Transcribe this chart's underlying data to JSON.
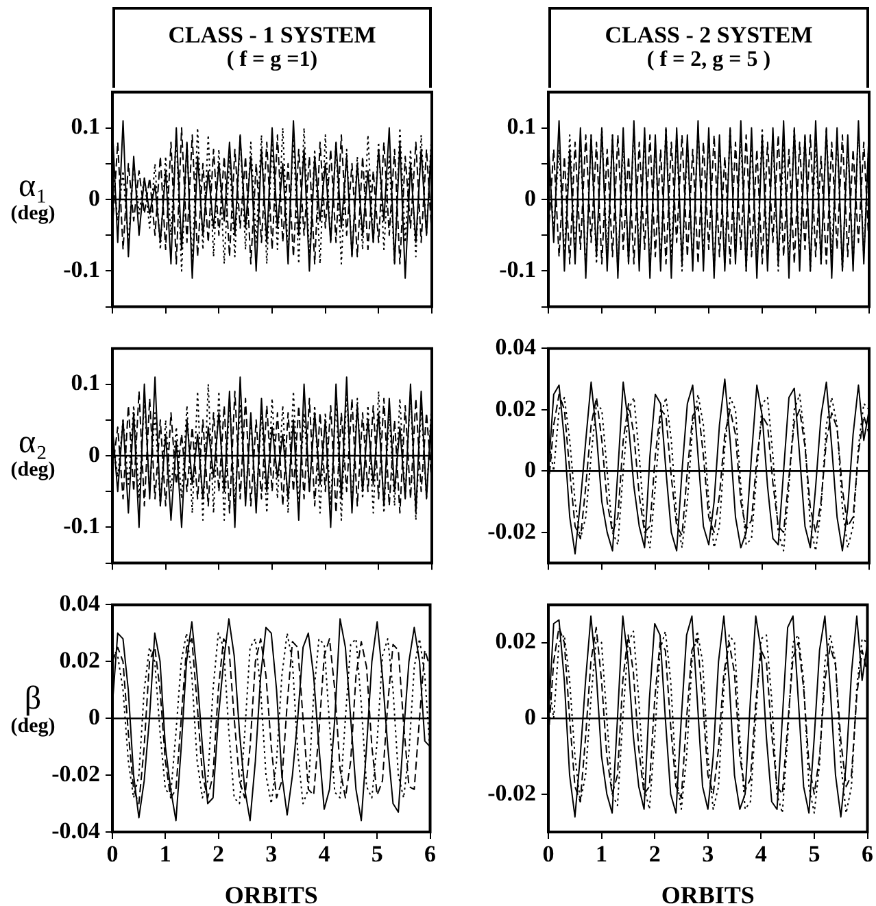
{
  "chart_data": [
    {
      "type": "line",
      "title": "CLASS - 1 SYSTEM",
      "subtitle": "( f = g =1)",
      "ylabel": "α₁\n(deg)",
      "tick_labels": "y",
      "xlim": [
        0,
        6
      ],
      "xticks": [
        0,
        1,
        2,
        3,
        4,
        5,
        6
      ],
      "ylim": [
        -0.15,
        0.15
      ],
      "yticks": [
        {
          "value": -0.15,
          "label": null
        },
        -0.1,
        {
          "value": -0.05,
          "label": null
        },
        0,
        {
          "value": 0.05,
          "label": null
        },
        0.1
      ],
      "ref_lines": [
        {
          "axis": "y",
          "value": 0
        }
      ],
      "x": [
        0,
        0.1,
        0.2,
        0.3,
        0.4,
        0.5,
        0.6,
        0.7,
        0.8,
        0.9,
        1,
        1.1,
        1.2,
        1.3,
        1.4,
        1.5,
        1.6,
        1.7,
        1.8,
        1.9,
        2,
        2.1,
        2.2,
        2.3,
        2.4,
        2.5,
        2.6,
        2.7,
        2.8,
        2.9,
        3,
        3.1,
        3.2,
        3.3,
        3.4,
        3.5,
        3.6,
        3.7,
        3.8,
        3.9,
        4,
        4.1,
        4.2,
        4.3,
        4.4,
        4.5,
        4.6,
        4.7,
        4.8,
        4.9,
        5,
        5.1,
        5.2,
        5.3,
        5.4,
        5.5,
        5.6,
        5.7,
        5.8,
        5.9,
        6
      ],
      "series": [
        {
          "color": "#000000",
          "line_style": "solid",
          "values": [
            0.1,
            -0.06,
            0.11,
            -0.08,
            0.06,
            -0.05,
            0.03,
            -0.02,
            0.02,
            -0.06,
            0.04,
            -0.09,
            0.1,
            -0.07,
            0.08,
            -0.11,
            0.06,
            -0.05,
            0.04,
            -0.04,
            0.05,
            -0.03,
            0.08,
            -0.05,
            0.09,
            -0.04,
            0.06,
            -0.1,
            0.07,
            -0.06,
            0.1,
            -0.04,
            0.05,
            -0.09,
            0.11,
            -0.05,
            0.07,
            -0.1,
            0.06,
            -0.03,
            0.05,
            -0.06,
            0.08,
            -0.04,
            0.06,
            -0.08,
            0.05,
            -0.05,
            0.04,
            -0.06,
            0.07,
            -0.03,
            0.1,
            -0.09,
            0.08,
            -0.11,
            0.05,
            -0.06,
            0.07,
            -0.05,
            0.09
          ]
        },
        {
          "color": "#000000",
          "line_style": "dashed",
          "values": [
            -0.04,
            0.08,
            -0.07,
            0.05,
            -0.03,
            0.04,
            -0.02,
            0.03,
            -0.05,
            0.06,
            -0.07,
            0.08,
            -0.09,
            0.1,
            -0.06,
            0.09,
            -0.08,
            0.05,
            -0.06,
            0.07,
            -0.05,
            0.06,
            -0.08,
            0.07,
            -0.04,
            0.06,
            -0.09,
            0.05,
            -0.06,
            0.08,
            -0.07,
            0.09,
            -0.06,
            0.05,
            -0.08,
            0.07,
            -0.05,
            0.06,
            -0.09,
            0.08,
            -0.04,
            0.07,
            -0.06,
            0.09,
            -0.05,
            0.05,
            -0.08,
            0.06,
            -0.07,
            0.04,
            -0.06,
            0.08,
            -0.05,
            0.07,
            -0.09,
            0.06,
            -0.04,
            0.08,
            -0.06,
            0.07,
            -0.05
          ]
        },
        {
          "color": "#000000",
          "line_style": "dotted",
          "values": [
            0.05,
            -0.03,
            0.04,
            -0.06,
            0.05,
            -0.02,
            0.03,
            -0.04,
            0.05,
            -0.07,
            0.06,
            -0.05,
            0.09,
            -0.1,
            0.08,
            -0.09,
            0.1,
            -0.07,
            0.09,
            -0.08,
            0.07,
            -0.09,
            0.06,
            -0.08,
            0.09,
            -0.07,
            0.08,
            -0.06,
            0.09,
            -0.09,
            0.08,
            -0.07,
            0.1,
            -0.08,
            0.09,
            -0.09,
            0.1,
            -0.08,
            0.07,
            -0.09,
            0.09,
            -0.06,
            0.08,
            -0.09,
            0.07,
            -0.08,
            0.06,
            -0.07,
            0.09,
            -0.06,
            0.08,
            -0.07,
            0.06,
            -0.09,
            0.1,
            -0.06,
            0.07,
            -0.08,
            0.09,
            -0.05,
            0.1
          ]
        }
      ]
    },
    {
      "type": "line",
      "title": "CLASS - 2 SYSTEM",
      "subtitle": "( f = 2, g = 5 )",
      "tick_labels": "y",
      "xlim": [
        0,
        6
      ],
      "xticks": [
        0,
        1,
        2,
        3,
        4,
        5,
        6
      ],
      "ylim": [
        -0.15,
        0.15
      ],
      "yticks": [
        {
          "value": -0.15,
          "label": null
        },
        -0.1,
        {
          "value": -0.05,
          "label": null
        },
        0,
        {
          "value": 0.05,
          "label": null
        },
        0.1
      ],
      "ref_lines": [
        {
          "axis": "y",
          "value": 0
        }
      ],
      "x": [
        0,
        0.1,
        0.2,
        0.3,
        0.4,
        0.5,
        0.6,
        0.7,
        0.8,
        0.9,
        1,
        1.1,
        1.2,
        1.3,
        1.4,
        1.5,
        1.6,
        1.7,
        1.8,
        1.9,
        2,
        2.1,
        2.2,
        2.3,
        2.4,
        2.5,
        2.6,
        2.7,
        2.8,
        2.9,
        3,
        3.1,
        3.2,
        3.3,
        3.4,
        3.5,
        3.6,
        3.7,
        3.8,
        3.9,
        4,
        4.1,
        4.2,
        4.3,
        4.4,
        4.5,
        4.6,
        4.7,
        4.8,
        4.9,
        5,
        5.1,
        5.2,
        5.3,
        5.4,
        5.5,
        5.6,
        5.7,
        5.8,
        5.9,
        6
      ],
      "series": [
        {
          "color": "#000000",
          "line_style": "solid",
          "values": [
            0.08,
            -0.06,
            0.11,
            -0.1,
            0.07,
            -0.09,
            0.1,
            -0.11,
            0.09,
            -0.08,
            0.1,
            -0.1,
            0.09,
            -0.11,
            0.1,
            -0.09,
            0.11,
            -0.1,
            0.1,
            -0.11,
            0.09,
            -0.1,
            0.1,
            -0.11,
            0.1,
            -0.09,
            0.09,
            -0.1,
            0.11,
            -0.1,
            0.1,
            -0.11,
            0.09,
            -0.1,
            0.1,
            -0.09,
            0.11,
            -0.1,
            0.1,
            -0.11,
            0.09,
            -0.1,
            0.1,
            -0.09,
            0.11,
            -0.11,
            0.1,
            -0.1,
            0.09,
            -0.1,
            0.11,
            -0.09,
            0.1,
            -0.11,
            0.1,
            -0.1,
            0.09,
            -0.1,
            0.11,
            -0.09,
            0.1
          ]
        },
        {
          "color": "#000000",
          "line_style": "dashed",
          "values": [
            -0.05,
            0.07,
            -0.08,
            0.06,
            -0.09,
            0.08,
            -0.07,
            0.09,
            -0.06,
            0.08,
            -0.09,
            0.07,
            -0.08,
            0.09,
            -0.07,
            0.06,
            -0.09,
            0.08,
            -0.07,
            0.09,
            -0.08,
            0.07,
            -0.09,
            0.08,
            -0.06,
            0.09,
            -0.08,
            0.07,
            -0.09,
            0.08,
            -0.07,
            0.09,
            -0.08,
            0.06,
            -0.09,
            0.08,
            -0.07,
            0.09,
            -0.08,
            0.07,
            -0.09,
            0.08,
            -0.06,
            0.09,
            -0.08,
            0.07,
            -0.09,
            0.08,
            -0.07,
            0.09,
            -0.08,
            0.06,
            -0.09,
            0.08,
            -0.07,
            0.09,
            -0.08,
            0.07,
            -0.06,
            0.08,
            -0.07
          ]
        },
        {
          "color": "#000000",
          "line_style": "dotted",
          "values": [
            0.06,
            -0.04,
            0.07,
            -0.08,
            0.09,
            -0.07,
            0.08,
            -0.1,
            0.09,
            -0.09,
            0.1,
            -0.08,
            0.09,
            -0.1,
            0.08,
            -0.09,
            0.1,
            -0.08,
            0.09,
            -0.1,
            0.08,
            -0.09,
            0.1,
            -0.08,
            0.09,
            -0.1,
            0.08,
            -0.09,
            0.1,
            -0.08,
            0.09,
            -0.1,
            0.08,
            -0.09,
            0.1,
            -0.08,
            0.09,
            -0.1,
            0.08,
            -0.09,
            0.1,
            -0.08,
            0.09,
            -0.1,
            0.08,
            -0.09,
            0.1,
            -0.08,
            0.09,
            -0.1,
            0.08,
            -0.09,
            0.1,
            -0.08,
            0.09,
            -0.1,
            0.08,
            -0.09,
            0.1,
            -0.08,
            0.09
          ]
        }
      ]
    },
    {
      "type": "line",
      "ylabel": "α₂\n(deg)",
      "tick_labels": "y",
      "xlim": [
        0,
        6
      ],
      "xticks": [
        0,
        1,
        2,
        3,
        4,
        5,
        6
      ],
      "ylim": [
        -0.15,
        0.15
      ],
      "yticks": [
        {
          "value": -0.15,
          "label": null
        },
        -0.1,
        {
          "value": -0.05,
          "label": null
        },
        0,
        {
          "value": 0.05,
          "label": null
        },
        0.1
      ],
      "ref_lines": [
        {
          "axis": "y",
          "value": 0
        }
      ],
      "x": [
        0,
        0.1,
        0.2,
        0.3,
        0.4,
        0.5,
        0.6,
        0.7,
        0.8,
        0.9,
        1,
        1.1,
        1.2,
        1.3,
        1.4,
        1.5,
        1.6,
        1.7,
        1.8,
        1.9,
        2,
        2.1,
        2.2,
        2.3,
        2.4,
        2.5,
        2.6,
        2.7,
        2.8,
        2.9,
        3,
        3.1,
        3.2,
        3.3,
        3.4,
        3.5,
        3.6,
        3.7,
        3.8,
        3.9,
        4,
        4.1,
        4.2,
        4.3,
        4.4,
        4.5,
        4.6,
        4.7,
        4.8,
        4.9,
        5,
        5.1,
        5.2,
        5.3,
        5.4,
        5.5,
        5.6,
        5.7,
        5.8,
        5.9,
        6
      ],
      "series": [
        {
          "color": "#000000",
          "line_style": "solid",
          "values": [
            0.04,
            -0.05,
            0.05,
            -0.08,
            0.06,
            -0.1,
            0.1,
            -0.06,
            0.11,
            -0.07,
            0.03,
            -0.09,
            0.02,
            -0.1,
            0.05,
            -0.04,
            0.03,
            -0.06,
            0.04,
            -0.03,
            0.06,
            -0.05,
            0.09,
            -0.1,
            0.11,
            -0.07,
            0.06,
            -0.08,
            0.08,
            -0.05,
            0.04,
            -0.03,
            0.03,
            -0.06,
            0.05,
            -0.09,
            0.1,
            -0.05,
            0.06,
            -0.04,
            0.05,
            -0.1,
            0.1,
            -0.06,
            0.11,
            -0.08,
            0.07,
            -0.05,
            0.05,
            -0.04,
            0.06,
            -0.07,
            0.08,
            -0.05,
            0.04,
            -0.06,
            0.1,
            -0.08,
            0.09,
            -0.06,
            0.07
          ]
        },
        {
          "color": "#000000",
          "line_style": "dashed",
          "values": [
            -0.02,
            0.04,
            -0.06,
            0.07,
            -0.05,
            0.09,
            -0.07,
            0.08,
            -0.06,
            0.05,
            -0.07,
            0.06,
            -0.04,
            0.03,
            -0.05,
            0.04,
            -0.06,
            0.05,
            -0.07,
            0.06,
            -0.05,
            0.07,
            -0.08,
            0.09,
            -0.06,
            0.08,
            -0.07,
            0.05,
            -0.06,
            0.07,
            -0.05,
            0.06,
            -0.07,
            0.06,
            -0.05,
            0.07,
            -0.06,
            0.08,
            -0.07,
            0.06,
            -0.05,
            0.07,
            -0.08,
            0.06,
            -0.05,
            0.08,
            -0.07,
            0.06,
            -0.05,
            0.07,
            -0.06,
            0.08,
            -0.07,
            0.05,
            -0.08,
            0.07,
            -0.06,
            0.08,
            -0.05,
            0.06,
            -0.04
          ]
        },
        {
          "color": "#000000",
          "line_style": "dotted",
          "values": [
            0.03,
            -0.03,
            0.05,
            -0.04,
            0.07,
            -0.06,
            0.08,
            -0.05,
            0.06,
            -0.07,
            0.05,
            -0.05,
            0.04,
            -0.06,
            0.07,
            -0.08,
            0.09,
            -0.09,
            0.1,
            -0.08,
            0.09,
            -0.09,
            0.08,
            -0.07,
            0.07,
            -0.06,
            0.05,
            -0.07,
            0.06,
            -0.08,
            0.08,
            -0.06,
            0.07,
            -0.08,
            0.09,
            -0.07,
            0.06,
            -0.05,
            0.07,
            -0.08,
            0.06,
            -0.07,
            0.08,
            -0.09,
            0.09,
            -0.07,
            0.08,
            -0.06,
            0.07,
            -0.08,
            0.09,
            -0.08,
            0.06,
            -0.07,
            0.08,
            -0.06,
            0.09,
            -0.09,
            0.07,
            -0.06,
            0.08
          ]
        }
      ]
    },
    {
      "type": "line",
      "tick_labels": "y",
      "xlim": [
        0,
        6
      ],
      "xticks": [
        0,
        1,
        2,
        3,
        4,
        5,
        6
      ],
      "ylim": [
        -0.03,
        0.04
      ],
      "yticks": [
        -0.02,
        0,
        0.02,
        0.04
      ],
      "ref_lines": [
        {
          "axis": "y",
          "value": 0
        }
      ],
      "x": [
        0,
        0.1,
        0.2,
        0.3,
        0.4,
        0.5,
        0.6,
        0.7,
        0.8,
        0.9,
        1,
        1.1,
        1.2,
        1.3,
        1.4,
        1.5,
        1.6,
        1.7,
        1.8,
        1.9,
        2,
        2.1,
        2.2,
        2.3,
        2.4,
        2.5,
        2.6,
        2.7,
        2.8,
        2.9,
        3,
        3.1,
        3.2,
        3.3,
        3.4,
        3.5,
        3.6,
        3.7,
        3.8,
        3.9,
        4,
        4.1,
        4.2,
        4.3,
        4.4,
        4.5,
        4.6,
        4.7,
        4.8,
        4.9,
        5,
        5.1,
        5.2,
        5.3,
        5.4,
        5.5,
        5.6,
        5.7,
        5.8,
        5.9,
        6
      ],
      "series": [
        {
          "color": "#000000",
          "line_style": "solid",
          "values": [
            0.0,
            0.025,
            0.028,
            0.01,
            -0.015,
            -0.027,
            -0.01,
            0.01,
            0.029,
            0.012,
            -0.01,
            -0.02,
            -0.026,
            0.0,
            0.029,
            0.015,
            -0.005,
            -0.018,
            -0.025,
            0.005,
            0.025,
            0.022,
            0.0,
            -0.02,
            -0.026,
            0.0,
            0.022,
            0.028,
            0.005,
            -0.018,
            -0.024,
            -0.01,
            0.015,
            0.03,
            0.01,
            -0.015,
            -0.025,
            -0.02,
            0.005,
            0.028,
            0.018,
            -0.005,
            -0.022,
            -0.024,
            0.0,
            0.024,
            0.027,
            0.005,
            -0.018,
            -0.025,
            -0.005,
            0.018,
            0.029,
            0.008,
            -0.015,
            -0.026,
            -0.012,
            0.012,
            0.028,
            0.01,
            0.02
          ]
        },
        {
          "color": "#000000",
          "line_style": "dashed",
          "values": [
            -0.005,
            0.015,
            0.025,
            0.02,
            0.0,
            -0.018,
            -0.022,
            -0.005,
            0.015,
            0.024,
            0.01,
            -0.01,
            -0.02,
            -0.015,
            0.01,
            0.022,
            0.012,
            -0.008,
            -0.02,
            -0.018,
            0.005,
            0.02,
            0.018,
            -0.002,
            -0.018,
            -0.021,
            0.0,
            0.018,
            0.021,
            0.005,
            -0.015,
            -0.02,
            -0.008,
            0.012,
            0.02,
            0.012,
            -0.01,
            -0.019,
            -0.016,
            0.004,
            0.018,
            0.015,
            -0.004,
            -0.018,
            -0.02,
            -0.002,
            0.016,
            0.02,
            0.008,
            -0.012,
            -0.02,
            -0.01,
            0.01,
            0.019,
            0.014,
            -0.006,
            -0.018,
            -0.015,
            0.006,
            0.018,
            0.012
          ]
        },
        {
          "color": "#000000",
          "line_style": "dotted",
          "values": [
            0.01,
            0.0,
            0.02,
            0.024,
            0.01,
            -0.01,
            -0.022,
            -0.015,
            0.005,
            0.022,
            0.02,
            0.0,
            -0.02,
            -0.024,
            0.0,
            0.02,
            0.024,
            0.005,
            -0.018,
            -0.025,
            -0.005,
            0.018,
            0.024,
            0.01,
            -0.015,
            -0.025,
            -0.01,
            0.015,
            0.025,
            0.015,
            -0.01,
            -0.025,
            -0.018,
            0.008,
            0.024,
            0.02,
            -0.005,
            -0.024,
            -0.022,
            0.0,
            0.022,
            0.024,
            0.005,
            -0.02,
            -0.026,
            -0.005,
            0.02,
            0.025,
            0.01,
            -0.018,
            -0.026,
            -0.012,
            0.015,
            0.024,
            0.015,
            -0.012,
            -0.025,
            -0.018,
            0.008,
            0.022,
            0.02
          ]
        }
      ]
    },
    {
      "type": "line",
      "ylabel": "β\n(deg)",
      "xlabel": "ORBITS",
      "xlim": [
        0,
        6
      ],
      "xticks": [
        0,
        1,
        2,
        3,
        4,
        5,
        6
      ],
      "ylim": [
        -0.04,
        0.04
      ],
      "yticks": [
        -0.04,
        -0.02,
        0,
        0.02,
        0.04
      ],
      "ref_lines": [
        {
          "axis": "y",
          "value": 0
        }
      ],
      "x": [
        0,
        0.1,
        0.2,
        0.3,
        0.4,
        0.5,
        0.6,
        0.7,
        0.8,
        0.9,
        1,
        1.1,
        1.2,
        1.3,
        1.4,
        1.5,
        1.6,
        1.7,
        1.8,
        1.9,
        2,
        2.1,
        2.2,
        2.3,
        2.4,
        2.5,
        2.6,
        2.7,
        2.8,
        2.9,
        3,
        3.1,
        3.2,
        3.3,
        3.4,
        3.5,
        3.6,
        3.7,
        3.8,
        3.9,
        4,
        4.1,
        4.2,
        4.3,
        4.4,
        4.5,
        4.6,
        4.7,
        4.8,
        4.9,
        5,
        5.1,
        5.2,
        5.3,
        5.4,
        5.5,
        5.6,
        5.7,
        5.8,
        5.9,
        6
      ],
      "series": [
        {
          "color": "#000000",
          "line_style": "solid",
          "values": [
            0.005,
            0.03,
            0.028,
            0.01,
            -0.02,
            -0.035,
            -0.022,
            0.0,
            0.03,
            0.02,
            -0.01,
            -0.025,
            -0.036,
            -0.01,
            0.02,
            0.034,
            0.015,
            -0.01,
            -0.03,
            -0.028,
            0.0,
            0.02,
            0.035,
            0.022,
            -0.005,
            -0.025,
            -0.036,
            -0.015,
            0.015,
            0.032,
            0.03,
            0.01,
            -0.02,
            -0.034,
            -0.02,
            0.0,
            0.025,
            0.03,
            0.015,
            -0.01,
            -0.032,
            -0.025,
            0.0,
            0.035,
            0.025,
            0.0,
            -0.025,
            -0.036,
            -0.01,
            0.02,
            0.034,
            0.015,
            -0.01,
            -0.03,
            -0.033,
            -0.005,
            0.02,
            0.032,
            0.02,
            -0.008,
            -0.01
          ]
        },
        {
          "color": "#000000",
          "line_style": "dashed",
          "values": [
            0.02,
            0.025,
            0.02,
            -0.005,
            -0.025,
            -0.03,
            -0.01,
            0.02,
            0.025,
            0.01,
            -0.015,
            -0.028,
            -0.025,
            0.0,
            0.025,
            0.028,
            0.005,
            -0.02,
            -0.028,
            -0.02,
            0.01,
            0.028,
            0.025,
            0.0,
            -0.022,
            -0.028,
            -0.01,
            0.02,
            0.028,
            0.015,
            -0.01,
            -0.028,
            -0.022,
            0.005,
            0.027,
            0.025,
            0.0,
            -0.025,
            -0.027,
            -0.005,
            0.022,
            0.028,
            0.01,
            -0.018,
            -0.028,
            -0.015,
            0.015,
            0.027,
            0.018,
            -0.01,
            -0.027,
            -0.022,
            0.005,
            0.026,
            0.024,
            -0.002,
            -0.024,
            -0.025,
            0.0,
            0.024,
            0.018
          ]
        },
        {
          "color": "#000000",
          "line_style": "dotted",
          "values": [
            0.025,
            0.022,
            0.01,
            -0.015,
            -0.028,
            -0.02,
            0.01,
            0.025,
            0.02,
            -0.005,
            -0.025,
            -0.027,
            -0.005,
            0.02,
            0.03,
            0.015,
            -0.015,
            -0.028,
            -0.022,
            0.01,
            0.03,
            0.025,
            -0.005,
            -0.028,
            -0.03,
            -0.005,
            0.025,
            0.028,
            0.01,
            -0.02,
            -0.03,
            -0.015,
            0.015,
            0.03,
            0.02,
            -0.012,
            -0.03,
            -0.025,
            0.008,
            0.028,
            0.026,
            -0.002,
            -0.026,
            -0.028,
            0.0,
            0.026,
            0.028,
            0.005,
            -0.024,
            -0.028,
            -0.008,
            0.022,
            0.028,
            0.01,
            -0.02,
            -0.028,
            -0.012,
            0.018,
            0.028,
            0.015,
            -0.012
          ]
        }
      ]
    },
    {
      "type": "line",
      "xlabel": "ORBITS",
      "xlim": [
        0,
        6
      ],
      "xticks": [
        0,
        1,
        2,
        3,
        4,
        5,
        6
      ],
      "ylim": [
        -0.03,
        0.03
      ],
      "yticks": [
        -0.02,
        0,
        0.02
      ],
      "ref_lines": [
        {
          "axis": "y",
          "value": 0
        }
      ],
      "x": [
        0,
        0.1,
        0.2,
        0.3,
        0.4,
        0.5,
        0.6,
        0.7,
        0.8,
        0.9,
        1,
        1.1,
        1.2,
        1.3,
        1.4,
        1.5,
        1.6,
        1.7,
        1.8,
        1.9,
        2,
        2.1,
        2.2,
        2.3,
        2.4,
        2.5,
        2.6,
        2.7,
        2.8,
        2.9,
        3,
        3.1,
        3.2,
        3.3,
        3.4,
        3.5,
        3.6,
        3.7,
        3.8,
        3.9,
        4,
        4.1,
        4.2,
        4.3,
        4.4,
        4.5,
        4.6,
        4.7,
        4.8,
        4.9,
        5,
        5.1,
        5.2,
        5.3,
        5.4,
        5.5,
        5.6,
        5.7,
        5.8,
        5.9,
        6
      ],
      "series": [
        {
          "color": "#000000",
          "line_style": "solid",
          "values": [
            0.0,
            0.025,
            0.026,
            0.01,
            -0.015,
            -0.026,
            -0.01,
            0.01,
            0.027,
            0.012,
            -0.01,
            -0.02,
            -0.025,
            0.0,
            0.027,
            0.015,
            -0.005,
            -0.018,
            -0.024,
            0.005,
            0.025,
            0.022,
            0.0,
            -0.02,
            -0.025,
            0.0,
            0.022,
            0.027,
            0.005,
            -0.018,
            -0.024,
            -0.01,
            0.015,
            0.027,
            0.01,
            -0.015,
            -0.024,
            -0.02,
            0.005,
            0.027,
            0.018,
            -0.005,
            -0.022,
            -0.024,
            0.0,
            0.024,
            0.027,
            0.005,
            -0.018,
            -0.025,
            -0.005,
            0.018,
            0.027,
            0.008,
            -0.015,
            -0.026,
            -0.012,
            0.012,
            0.027,
            0.01,
            0.02
          ]
        },
        {
          "color": "#000000",
          "line_style": "dashed",
          "values": [
            -0.005,
            0.015,
            0.024,
            0.02,
            0.0,
            -0.018,
            -0.022,
            -0.005,
            0.015,
            0.024,
            0.01,
            -0.01,
            -0.02,
            -0.015,
            0.01,
            0.022,
            0.012,
            -0.008,
            -0.02,
            -0.018,
            0.005,
            0.02,
            0.018,
            -0.002,
            -0.018,
            -0.021,
            0.0,
            0.018,
            0.021,
            0.005,
            -0.015,
            -0.02,
            -0.008,
            0.012,
            0.02,
            0.012,
            -0.01,
            -0.019,
            -0.016,
            0.004,
            0.018,
            0.015,
            -0.004,
            -0.018,
            -0.02,
            -0.002,
            0.016,
            0.02,
            0.008,
            -0.012,
            -0.02,
            -0.01,
            0.01,
            0.019,
            0.014,
            -0.006,
            -0.018,
            -0.015,
            0.006,
            0.018,
            0.012
          ]
        },
        {
          "color": "#000000",
          "line_style": "dotted",
          "values": [
            0.01,
            0.0,
            0.02,
            0.022,
            0.01,
            -0.01,
            -0.022,
            -0.015,
            0.005,
            0.021,
            0.02,
            0.0,
            -0.02,
            -0.023,
            0.0,
            0.02,
            0.023,
            0.005,
            -0.018,
            -0.024,
            -0.005,
            0.018,
            0.023,
            0.01,
            -0.015,
            -0.024,
            -0.01,
            0.015,
            0.023,
            0.015,
            -0.01,
            -0.024,
            -0.018,
            0.008,
            0.022,
            0.02,
            -0.005,
            -0.024,
            -0.022,
            0.0,
            0.021,
            0.022,
            0.005,
            -0.02,
            -0.025,
            -0.005,
            0.02,
            0.022,
            0.01,
            -0.018,
            -0.025,
            -0.012,
            0.015,
            0.022,
            0.015,
            -0.012,
            -0.025,
            -0.018,
            0.008,
            0.021,
            0.02
          ]
        }
      ]
    }
  ]
}
